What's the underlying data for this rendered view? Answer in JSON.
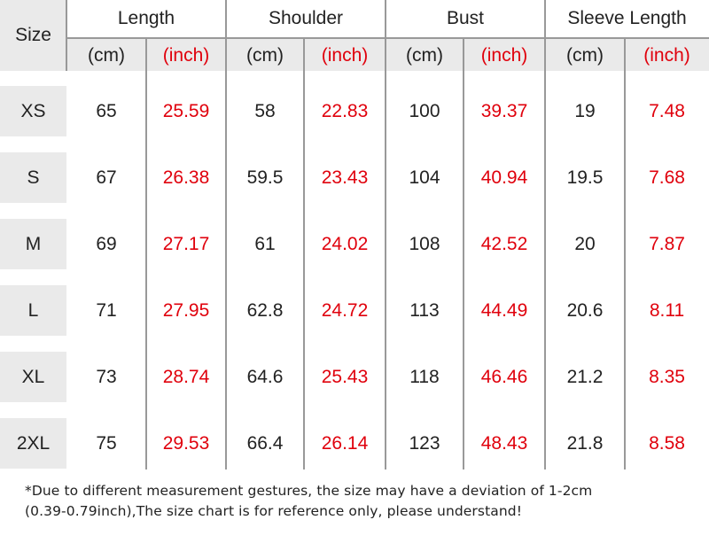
{
  "size_header": "Size",
  "groups": [
    "Length",
    "Shoulder",
    "Bust",
    "Sleeve Length"
  ],
  "units": {
    "cm": "(cm)",
    "inch": "(inch)"
  },
  "rows": [
    {
      "size": "XS",
      "values": [
        "65",
        "25.59",
        "58",
        "22.83",
        "100",
        "39.37",
        "19",
        "7.48"
      ]
    },
    {
      "size": "S",
      "values": [
        "67",
        "26.38",
        "59.5",
        "23.43",
        "104",
        "40.94",
        "19.5",
        "7.68"
      ]
    },
    {
      "size": "M",
      "values": [
        "69",
        "27.17",
        "61",
        "24.02",
        "108",
        "42.52",
        "20",
        "7.87"
      ]
    },
    {
      "size": "L",
      "values": [
        "71",
        "27.95",
        "62.8",
        "24.72",
        "113",
        "44.49",
        "20.6",
        "8.11"
      ]
    },
    {
      "size": "XL",
      "values": [
        "73",
        "28.74",
        "64.6",
        "25.43",
        "118",
        "46.46",
        "21.2",
        "8.35"
      ]
    },
    {
      "size": "2XL",
      "values": [
        "75",
        "29.53",
        "66.4",
        "26.14",
        "123",
        "48.43",
        "21.8",
        "8.58"
      ]
    }
  ],
  "note": {
    "line1": "*Due to different measurement gestures, the size may have a deviation of 1-2cm",
    "line2": "(0.39-0.79inch),The size chart is for reference only, please understand!"
  },
  "colors": {
    "inch_text": "#e0000c",
    "text": "#222222",
    "band": "#eaeaea",
    "grid": "#999999"
  }
}
